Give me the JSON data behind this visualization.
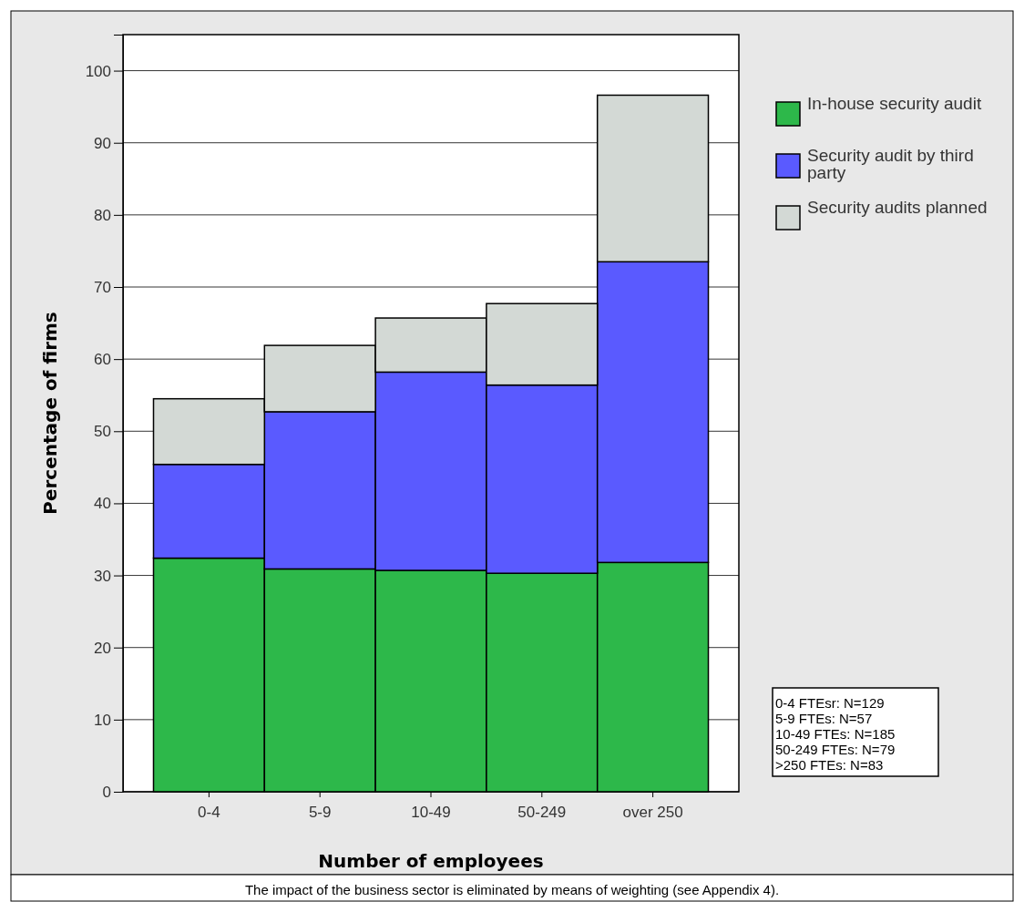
{
  "chart_data": {
    "type": "bar",
    "stacked": true,
    "xlabel": "Number of employees",
    "ylabel": "Percentage of firms",
    "categories": [
      "0-4",
      "5-9",
      "10-49",
      "50-249",
      "over 250"
    ],
    "series": [
      {
        "name": "In-house security audit",
        "color": "#2db84a",
        "values": [
          32.4,
          30.9,
          30.7,
          30.3,
          31.8
        ]
      },
      {
        "name": "Security audit by third party",
        "color": "#5a5aff",
        "values": [
          13.0,
          21.8,
          27.5,
          26.1,
          41.7
        ]
      },
      {
        "name": "Security audits planned",
        "color": "#d3d9d5",
        "values": [
          9.1,
          9.2,
          7.5,
          11.3,
          23.1
        ]
      }
    ],
    "ylim": [
      0,
      105
    ],
    "yticks": [
      0,
      10,
      20,
      30,
      40,
      50,
      60,
      70,
      80,
      90,
      100
    ],
    "grid": "y",
    "legend": "top right",
    "annotations": [
      "0-4 FTEsr: N=129\n5-9 FTEs: N=57\n10-49 FTEs: N=185\n50-249 FTEs: N=79\n>250 FTEs: N=83",
      "The impact of the business sector is eliminated by means of weighting (see Appendix 4)."
    ]
  }
}
